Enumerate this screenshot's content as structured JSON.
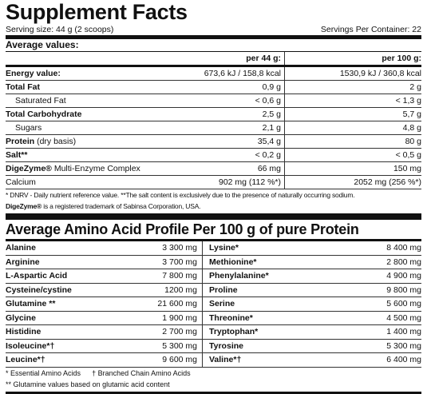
{
  "header": {
    "title": "Supplement Facts",
    "serving_size": "Serving size: 44 g (2 scoops)",
    "servings_per_container": "Servings Per Container: 22"
  },
  "nutrition": {
    "title": "Average values:",
    "columns": [
      "per 44 g:",
      "per 100 g:"
    ],
    "rows": [
      {
        "name": "Energy value:",
        "style": "bold",
        "values": [
          "673,6 kJ / 158,8 kcal",
          "1530,9 kJ / 360,8 kcal"
        ]
      },
      {
        "name": "Total Fat",
        "style": "bold",
        "values": [
          "0,9 g",
          "2 g"
        ]
      },
      {
        "name": "Saturated Fat",
        "style": "indent",
        "values": [
          "< 0,6 g",
          "< 1,3 g"
        ]
      },
      {
        "name": "Total Carbohydrate",
        "style": "bold",
        "values": [
          "2,5 g",
          "5,7 g"
        ]
      },
      {
        "name": "Sugars",
        "style": "indent",
        "values": [
          "2,1 g",
          "4,8 g"
        ]
      },
      {
        "name": "Protein",
        "note": " (dry basis)",
        "style": "bold",
        "values": [
          "35,4 g",
          "80 g"
        ]
      },
      {
        "name": "Salt**",
        "style": "bold",
        "values": [
          "< 0,2 g",
          "< 0,5 g"
        ]
      },
      {
        "name": "DigeZyme®",
        "note": " Multi-Enzyme Complex",
        "style": "bold",
        "values": [
          "66 mg",
          "150 mg"
        ]
      },
      {
        "name": "Calcium",
        "style": "plain",
        "values": [
          "902 mg (112 %*)",
          "2052 mg (256 %*)"
        ]
      }
    ],
    "footnotes": [
      {
        "text": "* DNRV - Daily nutrient reference value. **The salt content is exclusively due to the presence of naturally occurring sodium."
      },
      {
        "bold": "DigeZyme®",
        "text": " is a registered trademark of Sabinsa Corporation, USA."
      }
    ]
  },
  "amino": {
    "title": "Average Amino Acid Profile Per 100 g of pure Protein",
    "rows": [
      [
        "Alanine",
        "3 300 mg",
        "Lysine*",
        "8 400 mg"
      ],
      [
        "Arginine",
        "3 700 mg",
        "Methionine*",
        "2 800 mg"
      ],
      [
        "L-Aspartic Acid",
        "7 800 mg",
        "Phenylalanine*",
        "4 900 mg"
      ],
      [
        "Cysteine/cystine",
        "1200 mg",
        "Proline",
        "9 800 mg"
      ],
      [
        "Glutamine **",
        "21 600 mg",
        "Serine",
        "5 600 mg"
      ],
      [
        "Glycine",
        "1 900 mg",
        "Threonine*",
        "4 500 mg"
      ],
      [
        "Histidine",
        "2 700 mg",
        "Tryptophan*",
        "1 400 mg"
      ],
      [
        "Isoleucine*†",
        "5 300 mg",
        "Tyrosine",
        "5 300 mg"
      ],
      [
        "Leucine*†",
        "9 600 mg",
        "Valine*†",
        "6 400 mg"
      ]
    ],
    "footnotes": [
      [
        "* Essential Amino Acids",
        "† Branched Chain Amino Acids"
      ],
      [
        "** Glutamine values based on glutamic acid content"
      ]
    ]
  }
}
